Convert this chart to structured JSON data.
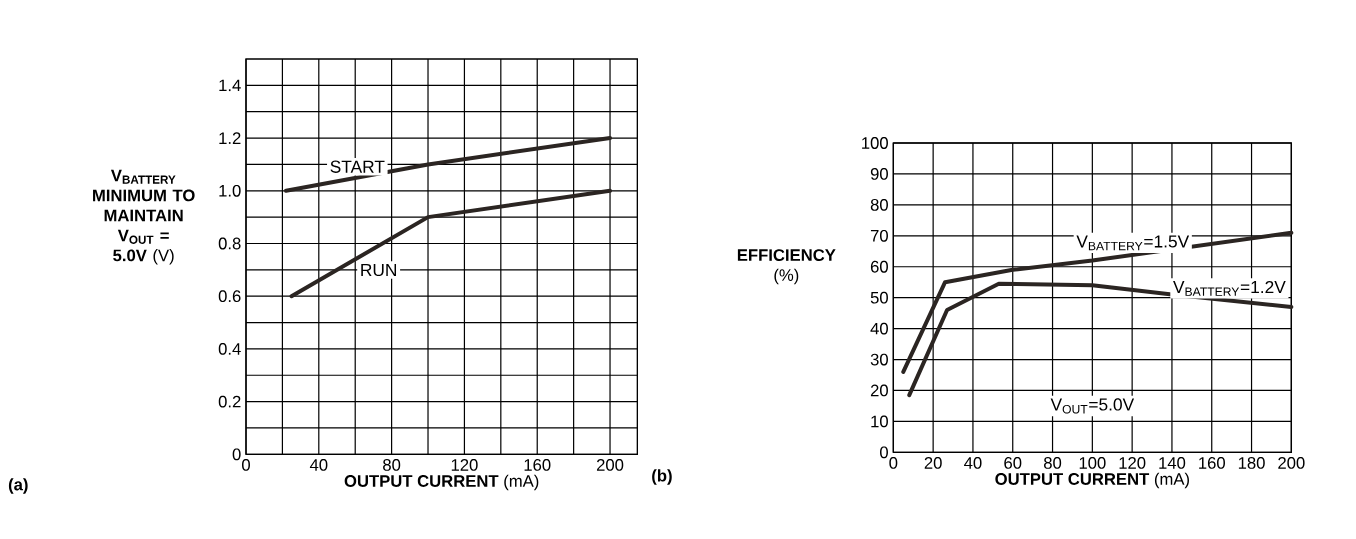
{
  "chart_data": [
    {
      "type": "line",
      "xlabel": "**OUTPUT CURRENT** (mA)",
      "ylabel": "**V$_{BATTERY}$ MINIMUM TO MAINTAIN V$_{OUT}$ = 5.0V** (V)",
      "xlim": [
        0,
        215
      ],
      "ylim": [
        0,
        1.5
      ],
      "xticks": [
        0,
        {
          "value": 20,
          "label": null
        },
        40,
        {
          "value": 60,
          "label": null
        },
        80,
        {
          "value": 100,
          "label": null
        },
        120,
        {
          "value": 140,
          "label": null
        },
        160,
        {
          "value": 180,
          "label": null
        },
        200
      ],
      "yticks": [
        0,
        {
          "value": 0.1,
          "label": null
        },
        0.2,
        {
          "value": 0.3,
          "label": null
        },
        0.4,
        {
          "value": 0.5,
          "label": null
        },
        0.6,
        {
          "value": 0.7,
          "label": null
        },
        0.8,
        {
          "value": 0.9,
          "label": null
        },
        {
          "value": 1,
          "label": "1.0"
        },
        {
          "value": 1.1,
          "label": null
        },
        1.2,
        {
          "value": 1.3,
          "label": null
        },
        1.4
      ],
      "grid": true,
      "marker": "none",
      "line_style": "solid",
      "series": [
        {
          "name": "START",
          "color": "#2b2522",
          "x": [
            22,
            100,
            200
          ],
          "values": [
            1.0,
            1.1,
            1.2
          ]
        },
        {
          "name": "RUN",
          "color": "#2b2522",
          "x": [
            25,
            100,
            200
          ],
          "values": [
            0.6,
            0.9,
            1.0
          ]
        }
      ],
      "annotations": [
        "(a)"
      ]
    },
    {
      "type": "line",
      "xlabel": "**OUTPUT CURRENT** (mA)",
      "ylabel": "**EFFICIENCY** (%)",
      "xlim": [
        0,
        200
      ],
      "ylim": [
        0,
        100
      ],
      "xticks": [
        0,
        20,
        40,
        60,
        80,
        100,
        120,
        140,
        160,
        180,
        200
      ],
      "yticks": [
        0,
        10,
        20,
        30,
        40,
        50,
        60,
        70,
        80,
        90,
        100
      ],
      "grid": true,
      "marker": "none",
      "line_style": "solid",
      "series": [
        {
          "name": "V$_{BATTERY}$=1.5V",
          "color": "#2b2522",
          "x": [
            5,
            26,
            60,
            100,
            200
          ],
          "values": [
            26,
            55,
            59,
            62,
            71
          ]
        },
        {
          "name": "V$_{BATTERY}$=1.2V",
          "color": "#2b2522",
          "x": [
            8,
            27,
            53,
            100,
            140,
            200
          ],
          "values": [
            18.5,
            46,
            54.5,
            54,
            51,
            47
          ]
        }
      ],
      "annotations": [
        "(b)",
        "V$_{OUT}$=5.0V"
      ]
    }
  ]
}
